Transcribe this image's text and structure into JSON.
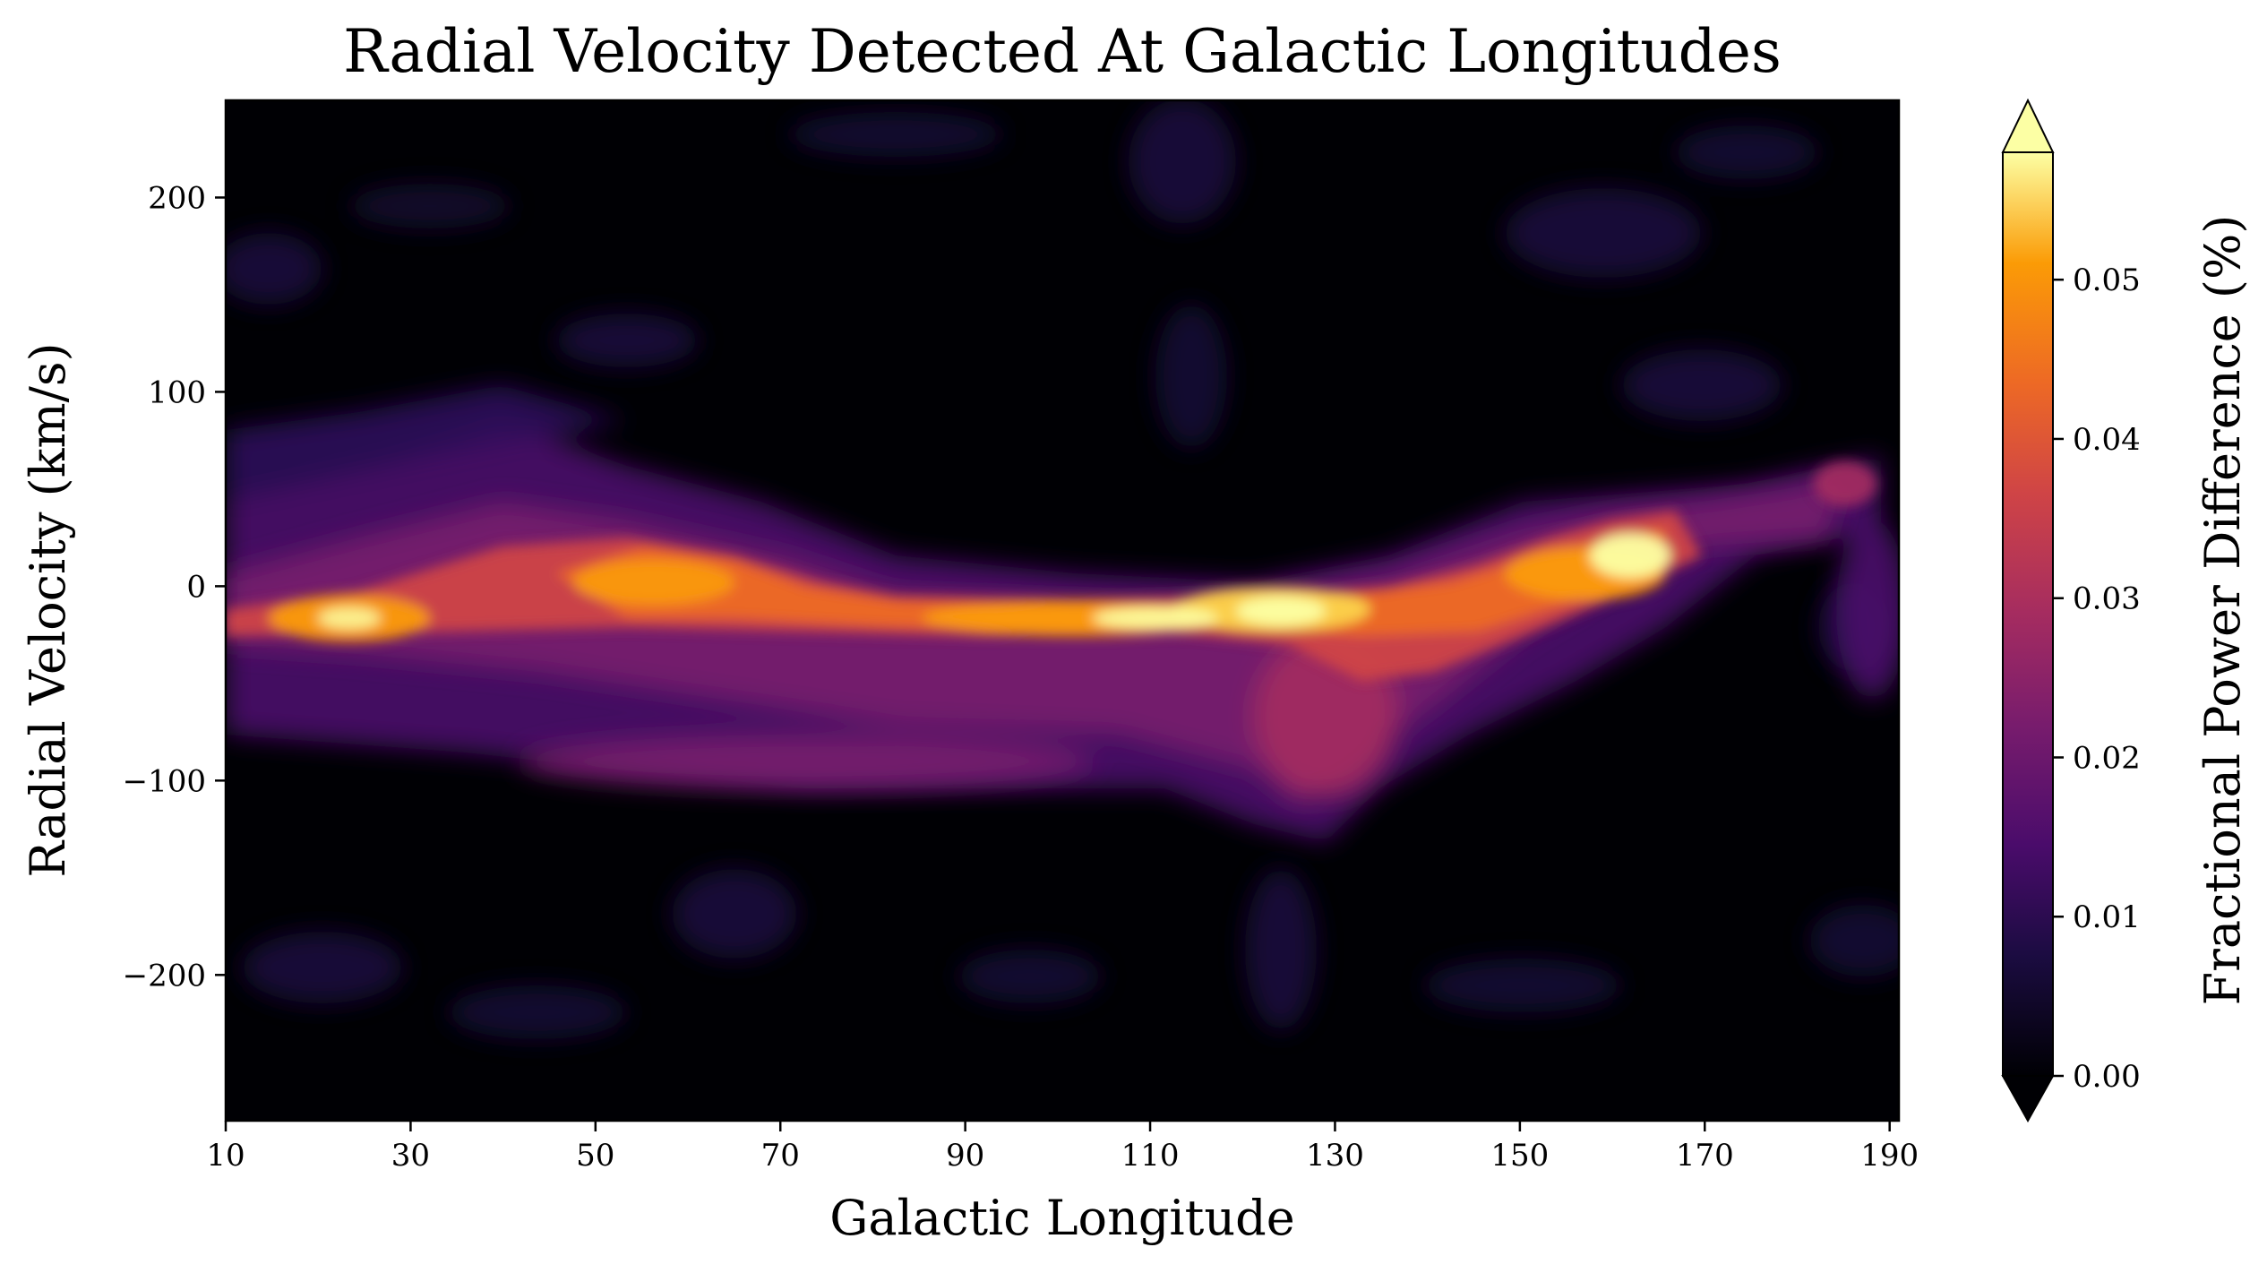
{
  "chart_data": {
    "type": "heatmap",
    "title": "Radial Velocity Detected At Galactic Longitudes",
    "xlabel": "Galactic Longitude",
    "ylabel": "Radial Velocity (km/s)",
    "xlim": [
      10,
      191
    ],
    "ylim": [
      -275,
      250
    ],
    "x_ticks": [
      10,
      30,
      50,
      70,
      90,
      110,
      130,
      150,
      170,
      190
    ],
    "x_tick_labels": [
      "10",
      "30",
      "50",
      "70",
      "90",
      "110",
      "130",
      "150",
      "170",
      "190"
    ],
    "y_ticks": [
      -200,
      -100,
      0,
      100,
      200
    ],
    "y_tick_labels": [
      "−200",
      "−100",
      "0",
      "100",
      "200"
    ],
    "colorbar": {
      "label": "Fractional Power Difference (%)",
      "colormap": "inferno",
      "range": [
        0,
        0.058
      ],
      "extend": "both",
      "ticks": [
        0.0,
        0.01,
        0.02,
        0.03,
        0.04,
        0.05
      ],
      "tick_labels": [
        "0.00",
        "0.01",
        "0.02",
        "0.03",
        "0.04",
        "0.05"
      ]
    },
    "features": [
      {
        "x": [
          10,
          30
        ],
        "y": -17,
        "value": 0.05
      },
      {
        "x": [
          30,
          80
        ],
        "y": 10,
        "value": 0.04
      },
      {
        "x": [
          80,
          130
        ],
        "y": -15,
        "value": 0.052
      },
      {
        "x": [
          120,
          132
        ],
        "y": -15,
        "value": 0.058
      },
      {
        "x": [
          135,
          170
        ],
        "y": -10,
        "value": 0.045
      },
      {
        "x": [
          155,
          168
        ],
        "y": 10,
        "value": 0.058
      },
      {
        "x": [
          40,
          125
        ],
        "y": -90,
        "value": 0.03
      },
      {
        "x": [
          170,
          186
        ],
        "y": 45,
        "value": 0.03
      },
      {
        "x": [
          186,
          191
        ],
        "y": -40,
        "value": 0.025
      }
    ]
  }
}
